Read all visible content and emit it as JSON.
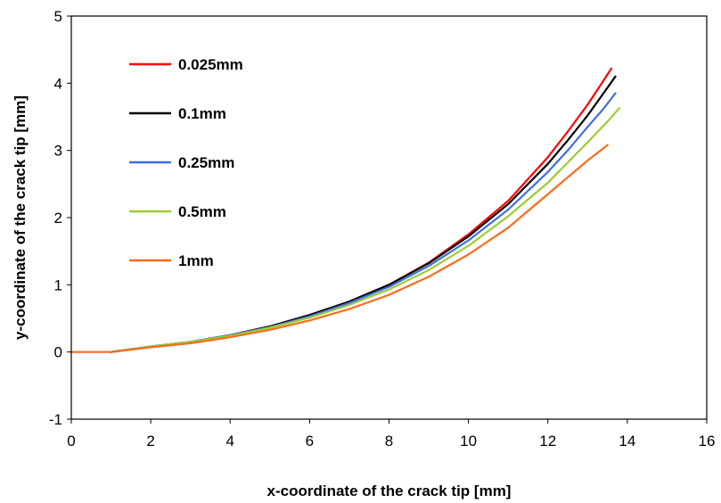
{
  "chart_data": {
    "type": "line",
    "xlabel": "x-coordinate of the crack tip [mm]",
    "ylabel": "y-coordinate of the crack tip [mm]",
    "xlim": [
      0,
      16
    ],
    "ylim": [
      -1,
      5
    ],
    "xticks": [
      0,
      2,
      4,
      6,
      8,
      10,
      12,
      14,
      16
    ],
    "yticks": [
      -1,
      0,
      1,
      2,
      3,
      4,
      5
    ],
    "grid": false,
    "legend_position": "top-left",
    "series": [
      {
        "name": "0.025mm",
        "color": "#ff0000",
        "x": [
          1.0,
          2.0,
          3.0,
          4.0,
          5.0,
          6.0,
          7.0,
          8.0,
          9.0,
          10.0,
          11.0,
          12.0,
          12.5,
          13.0,
          13.3,
          13.6
        ],
        "y": [
          0.0,
          0.08,
          0.15,
          0.25,
          0.38,
          0.55,
          0.75,
          1.0,
          1.33,
          1.75,
          2.25,
          2.9,
          3.28,
          3.68,
          3.95,
          4.22
        ]
      },
      {
        "name": "0.1mm",
        "color": "#000000",
        "x": [
          1.0,
          2.0,
          3.0,
          4.0,
          5.0,
          6.0,
          7.0,
          8.0,
          9.0,
          10.0,
          11.0,
          12.0,
          12.5,
          13.0,
          13.4,
          13.7
        ],
        "y": [
          0.0,
          0.08,
          0.15,
          0.25,
          0.38,
          0.55,
          0.75,
          1.0,
          1.32,
          1.72,
          2.2,
          2.8,
          3.15,
          3.52,
          3.85,
          4.1
        ]
      },
      {
        "name": "0.25mm",
        "color": "#3c6fe0",
        "x": [
          1.0,
          2.0,
          3.0,
          4.0,
          5.0,
          6.0,
          7.0,
          8.0,
          9.0,
          10.0,
          11.0,
          12.0,
          12.5,
          13.0,
          13.4,
          13.7
        ],
        "y": [
          0.0,
          0.08,
          0.15,
          0.25,
          0.37,
          0.53,
          0.73,
          0.97,
          1.28,
          1.66,
          2.12,
          2.68,
          3.0,
          3.35,
          3.62,
          3.85
        ]
      },
      {
        "name": "0.5mm",
        "color": "#9acd32",
        "x": [
          1.0,
          2.0,
          3.0,
          4.0,
          5.0,
          6.0,
          7.0,
          8.0,
          9.0,
          10.0,
          11.0,
          12.0,
          12.5,
          13.0,
          13.5,
          13.8
        ],
        "y": [
          0.0,
          0.08,
          0.15,
          0.24,
          0.36,
          0.51,
          0.7,
          0.93,
          1.22,
          1.58,
          2.02,
          2.52,
          2.82,
          3.12,
          3.43,
          3.63
        ]
      },
      {
        "name": "1mm",
        "color": "#ff6a1a",
        "x": [
          0.0,
          1.0,
          2.0,
          3.0,
          4.0,
          5.0,
          6.0,
          7.0,
          8.0,
          9.0,
          10.0,
          11.0,
          11.5,
          12.0,
          12.5,
          13.0,
          13.5
        ],
        "y": [
          0.0,
          0.0,
          0.07,
          0.13,
          0.22,
          0.33,
          0.47,
          0.64,
          0.85,
          1.12,
          1.45,
          1.85,
          2.1,
          2.35,
          2.6,
          2.85,
          3.08
        ]
      }
    ]
  }
}
